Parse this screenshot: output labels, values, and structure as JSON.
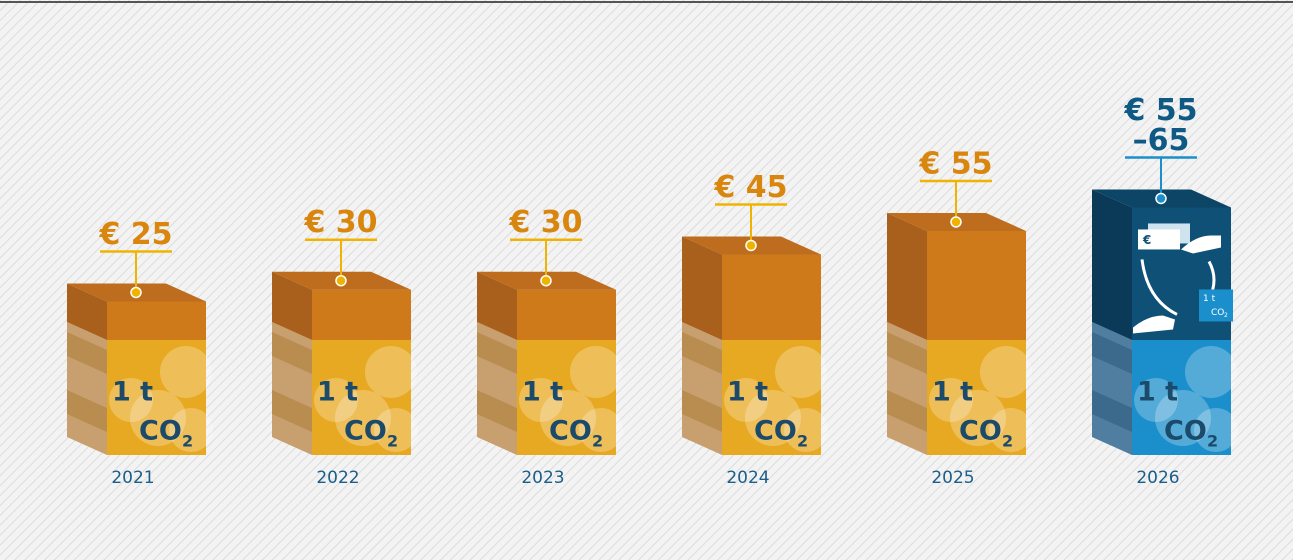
{
  "chart_data": {
    "type": "bar",
    "categories": [
      "2021",
      "2022",
      "2023",
      "2024",
      "2025"
    ],
    "values": [
      25,
      30,
      30,
      45,
      55
    ],
    "value_labels": [
      "€ 25",
      "€ 30",
      "€ 30",
      "€ 45",
      "€ 55"
    ],
    "color": "#cf7a1a",
    "forecast": {
      "category": "2026",
      "low": 55,
      "high": 65,
      "label_lines": [
        "€ 55",
        "–65"
      ],
      "color": "#0f5077",
      "icon_currency": "€"
    },
    "unit_line1": "1 t",
    "unit_line2": "CO",
    "unit_sub": "2"
  }
}
